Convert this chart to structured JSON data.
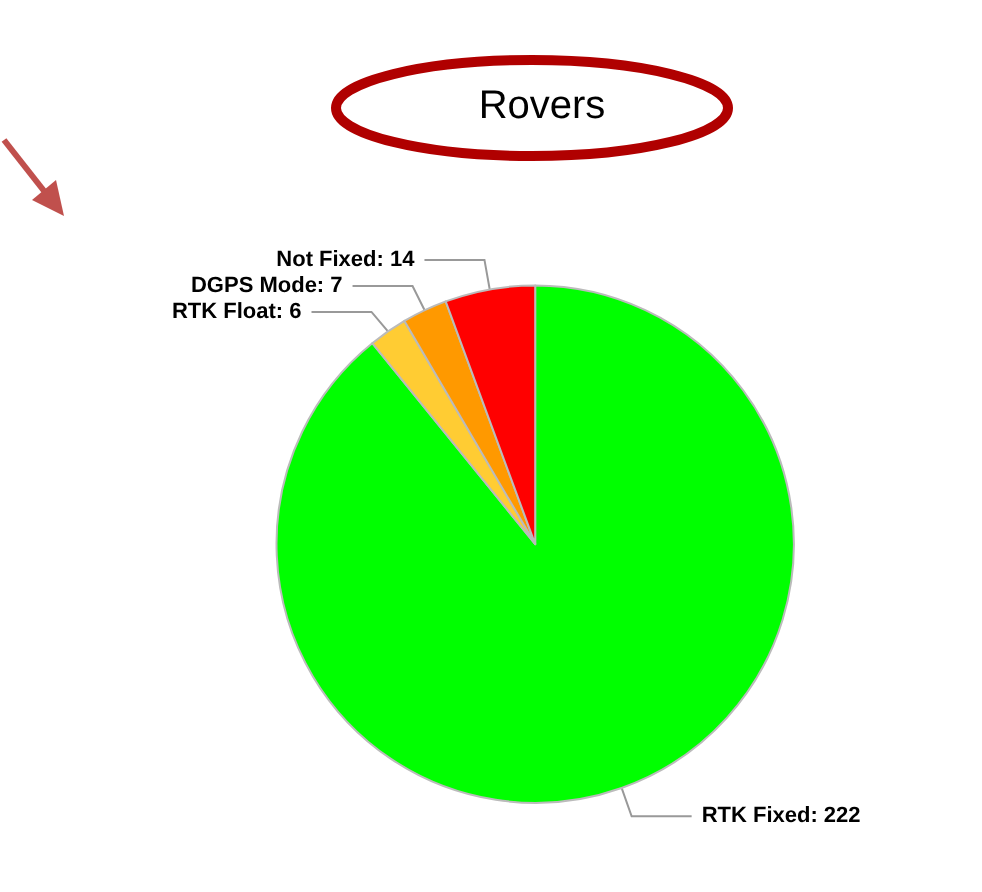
{
  "chart_data": {
    "type": "pie",
    "title": "Rovers",
    "categories": [
      "RTK Fixed",
      "RTK Float",
      "DGPS Mode",
      "Not Fixed"
    ],
    "values": [
      222,
      6,
      7,
      14
    ],
    "colors": [
      "#00ff00",
      "#ffcc33",
      "#ff9900",
      "#ff0000"
    ],
    "value_labels": [
      ": 222",
      ": 6",
      ": 7",
      ": 14"
    ]
  }
}
